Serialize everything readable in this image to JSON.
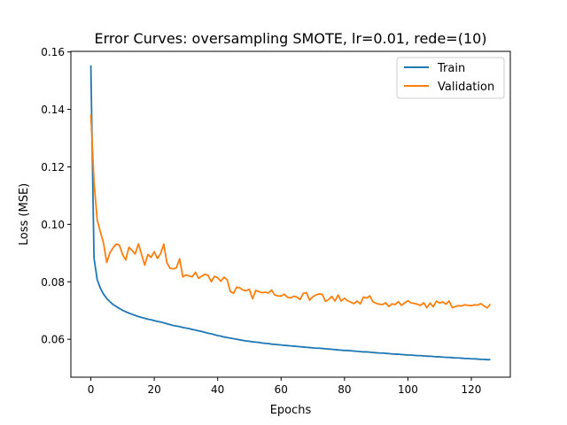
{
  "chart_data": {
    "type": "line",
    "title": "Error Curves: oversampling SMOTE, lr=0.01, rede=(10)",
    "xlabel": "Epochs",
    "ylabel": "Loss (MSE)",
    "xlim": [
      -6.3,
      132.3
    ],
    "ylim": [
      0.0468,
      0.1602
    ],
    "xticks": [
      0,
      20,
      40,
      60,
      80,
      100,
      120
    ],
    "xtick_labels": [
      "0",
      "20",
      "40",
      "60",
      "80",
      "100",
      "120"
    ],
    "yticks": [
      0.06,
      0.08,
      0.1,
      0.12,
      0.14,
      0.16
    ],
    "ytick_labels": [
      "0.06",
      "0.08",
      "0.10",
      "0.12",
      "0.14",
      "0.16"
    ],
    "grid": false,
    "legend_position": "top-right",
    "series": [
      {
        "name": "Train",
        "color": "#1f77b4",
        "x": [
          0,
          1,
          2,
          3,
          4,
          5,
          6,
          7,
          8,
          9,
          10,
          11,
          12,
          13,
          14,
          15,
          16,
          17,
          18,
          19,
          20,
          21,
          22,
          23,
          24,
          25,
          26,
          27,
          28,
          29,
          30,
          31,
          32,
          33,
          34,
          35,
          36,
          37,
          38,
          39,
          40,
          41,
          42,
          43,
          44,
          45,
          46,
          47,
          48,
          49,
          50,
          51,
          52,
          53,
          54,
          55,
          56,
          57,
          58,
          59,
          60,
          61,
          62,
          63,
          64,
          65,
          66,
          67,
          68,
          69,
          70,
          71,
          72,
          73,
          74,
          75,
          76,
          77,
          78,
          79,
          80,
          81,
          82,
          83,
          84,
          85,
          86,
          87,
          88,
          89,
          90,
          91,
          92,
          93,
          94,
          95,
          96,
          97,
          98,
          99,
          100,
          101,
          102,
          103,
          104,
          105,
          106,
          107,
          108,
          109,
          110,
          111,
          112,
          113,
          114,
          115,
          116,
          117,
          118,
          119,
          120,
          121,
          122,
          123,
          124,
          125,
          126
        ],
        "values": [
          0.1553,
          0.0882,
          0.0808,
          0.0778,
          0.0757,
          0.0742,
          0.0731,
          0.0721,
          0.0714,
          0.0707,
          0.0701,
          0.0696,
          0.0691,
          0.0687,
          0.0683,
          0.0679,
          0.0676,
          0.0673,
          0.067,
          0.0668,
          0.0665,
          0.0662,
          0.066,
          0.0657,
          0.0654,
          0.0651,
          0.0648,
          0.0646,
          0.0644,
          0.0641,
          0.0639,
          0.0637,
          0.0634,
          0.0632,
          0.0629,
          0.0627,
          0.0624,
          0.0621,
          0.0619,
          0.0616,
          0.0613,
          0.0611,
          0.0608,
          0.0606,
          0.0604,
          0.0602,
          0.06,
          0.0598,
          0.0596,
          0.0594,
          0.0593,
          0.0591,
          0.059,
          0.0589,
          0.0587,
          0.0586,
          0.0585,
          0.0583,
          0.0582,
          0.0581,
          0.058,
          0.0579,
          0.0578,
          0.0577,
          0.0576,
          0.0575,
          0.0574,
          0.0573,
          0.0572,
          0.0571,
          0.057,
          0.0569,
          0.0569,
          0.0568,
          0.0567,
          0.0566,
          0.0565,
          0.0564,
          0.0563,
          0.0562,
          0.0561,
          0.0561,
          0.056,
          0.0559,
          0.0558,
          0.0557,
          0.0556,
          0.0556,
          0.0555,
          0.0554,
          0.0553,
          0.0552,
          0.0552,
          0.0551,
          0.055,
          0.0549,
          0.0548,
          0.0548,
          0.0547,
          0.0546,
          0.0545,
          0.0545,
          0.0544,
          0.0543,
          0.0543,
          0.0542,
          0.0541,
          0.0541,
          0.054,
          0.0539,
          0.0539,
          0.0538,
          0.0537,
          0.0537,
          0.0536,
          0.0535,
          0.0535,
          0.0534,
          0.0533,
          0.0533,
          0.0532,
          0.0532,
          0.0531,
          0.053,
          0.053,
          0.0529,
          0.0529
        ]
      },
      {
        "name": "Validation",
        "color": "#ff7f0e",
        "x": [
          0,
          1,
          2,
          3,
          4,
          5,
          6,
          7,
          8,
          9,
          10,
          11,
          12,
          13,
          14,
          15,
          16,
          17,
          18,
          19,
          20,
          21,
          22,
          23,
          24,
          25,
          26,
          27,
          28,
          29,
          30,
          31,
          32,
          33,
          34,
          35,
          36,
          37,
          38,
          39,
          40,
          41,
          42,
          43,
          44,
          45,
          46,
          47,
          48,
          49,
          50,
          51,
          52,
          53,
          54,
          55,
          56,
          57,
          58,
          59,
          60,
          61,
          62,
          63,
          64,
          65,
          66,
          67,
          68,
          69,
          70,
          71,
          72,
          73,
          74,
          75,
          76,
          77,
          78,
          79,
          80,
          81,
          82,
          83,
          84,
          85,
          86,
          87,
          88,
          89,
          90,
          91,
          92,
          93,
          94,
          95,
          96,
          97,
          98,
          99,
          100,
          101,
          102,
          103,
          104,
          105,
          106,
          107,
          108,
          109,
          110,
          111,
          112,
          113,
          114,
          115,
          116,
          117,
          118,
          119,
          120,
          121,
          122,
          123,
          124,
          125,
          126
        ],
        "values": [
          0.1382,
          0.1148,
          0.1015,
          0.0974,
          0.0935,
          0.0867,
          0.0901,
          0.0918,
          0.0931,
          0.0928,
          0.0895,
          0.0876,
          0.092,
          0.0909,
          0.0897,
          0.0932,
          0.0895,
          0.0858,
          0.0895,
          0.0885,
          0.0905,
          0.0881,
          0.0898,
          0.0931,
          0.0866,
          0.0847,
          0.0845,
          0.0849,
          0.088,
          0.0817,
          0.0824,
          0.082,
          0.0818,
          0.0833,
          0.0812,
          0.082,
          0.0826,
          0.0822,
          0.08,
          0.0819,
          0.0814,
          0.0802,
          0.0816,
          0.0807,
          0.0766,
          0.076,
          0.0781,
          0.0779,
          0.0771,
          0.0769,
          0.0774,
          0.0741,
          0.077,
          0.0766,
          0.0762,
          0.0764,
          0.0761,
          0.0771,
          0.0754,
          0.0751,
          0.075,
          0.0757,
          0.0746,
          0.0744,
          0.075,
          0.0747,
          0.0738,
          0.076,
          0.0762,
          0.0736,
          0.0748,
          0.0754,
          0.0758,
          0.0756,
          0.0732,
          0.0738,
          0.0749,
          0.0733,
          0.0754,
          0.0733,
          0.0743,
          0.0734,
          0.0729,
          0.0724,
          0.0733,
          0.0723,
          0.0747,
          0.0743,
          0.0751,
          0.073,
          0.0725,
          0.0722,
          0.0721,
          0.0727,
          0.0714,
          0.0723,
          0.0721,
          0.0731,
          0.0718,
          0.0727,
          0.0734,
          0.0727,
          0.0725,
          0.0722,
          0.0718,
          0.0727,
          0.071,
          0.0726,
          0.0713,
          0.0733,
          0.0726,
          0.073,
          0.0722,
          0.0733,
          0.071,
          0.0714,
          0.0717,
          0.0716,
          0.072,
          0.0718,
          0.0717,
          0.072,
          0.0719,
          0.0724,
          0.0716,
          0.0709,
          0.0722
        ]
      }
    ]
  }
}
